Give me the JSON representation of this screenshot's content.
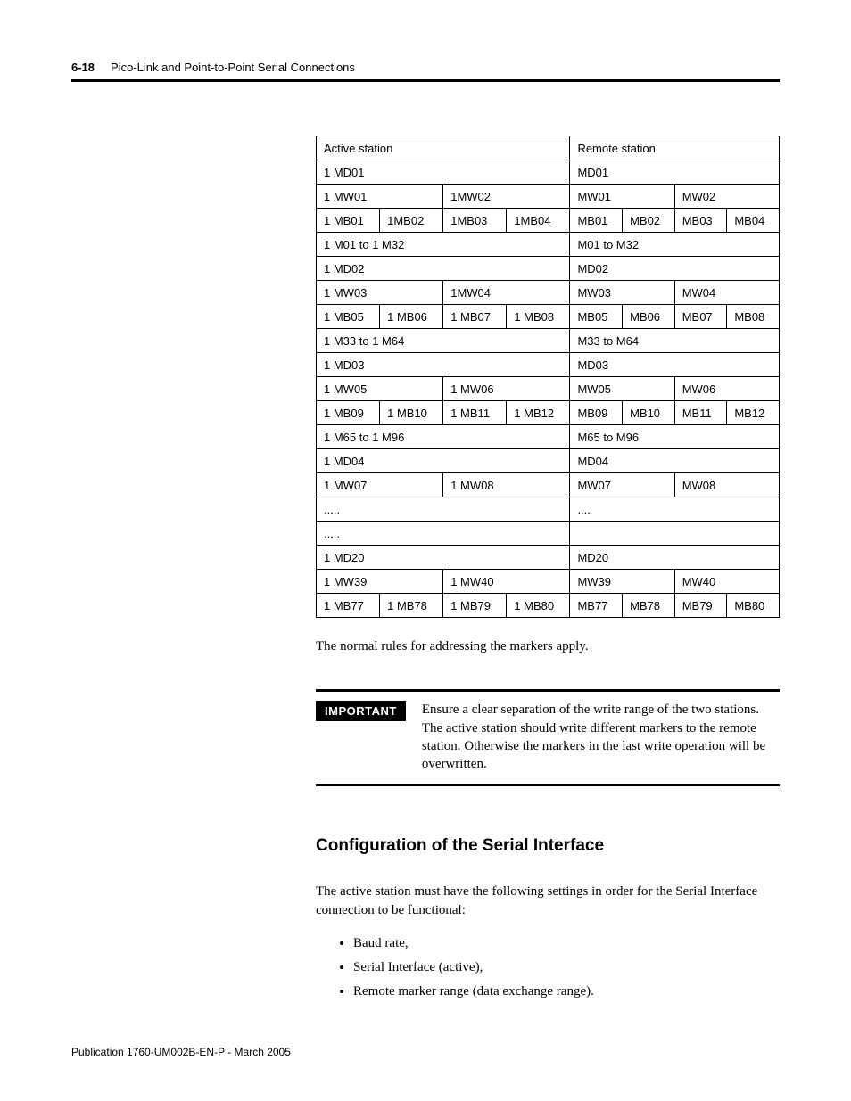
{
  "header": {
    "page_no": "6-18",
    "title": "Pico-Link and Point-to-Point Serial Connections"
  },
  "table": {
    "columns": 8,
    "border_color": "#000000",
    "text_color": "#000000",
    "font_size": 13,
    "rows": [
      [
        {
          "t": "Active station",
          "span": 4
        },
        {
          "t": "Remote station",
          "span": 4
        }
      ],
      [
        {
          "t": "1 MD01",
          "span": 4
        },
        {
          "t": "MD01",
          "span": 4
        }
      ],
      [
        {
          "t": "1 MW01",
          "span": 2
        },
        {
          "t": "1MW02",
          "span": 2
        },
        {
          "t": "MW01",
          "span": 2
        },
        {
          "t": "MW02",
          "span": 2
        }
      ],
      [
        {
          "t": "1 MB01",
          "span": 1
        },
        {
          "t": "1MB02",
          "span": 1
        },
        {
          "t": "1MB03",
          "span": 1
        },
        {
          "t": "1MB04",
          "span": 1
        },
        {
          "t": "MB01",
          "span": 1
        },
        {
          "t": "MB02",
          "span": 1
        },
        {
          "t": "MB03",
          "span": 1
        },
        {
          "t": "MB04",
          "span": 1
        }
      ],
      [
        {
          "t": "1 M01 to 1 M32",
          "span": 4
        },
        {
          "t": "M01 to M32",
          "span": 4
        }
      ],
      [
        {
          "t": "1 MD02",
          "span": 4
        },
        {
          "t": "MD02",
          "span": 4
        }
      ],
      [
        {
          "t": "1 MW03",
          "span": 2
        },
        {
          "t": "1MW04",
          "span": 2
        },
        {
          "t": "MW03",
          "span": 2
        },
        {
          "t": "MW04",
          "span": 2
        }
      ],
      [
        {
          "t": "1 MB05",
          "span": 1
        },
        {
          "t": "1 MB06",
          "span": 1
        },
        {
          "t": "1 MB07",
          "span": 1
        },
        {
          "t": "1 MB08",
          "span": 1
        },
        {
          "t": "MB05",
          "span": 1
        },
        {
          "t": "MB06",
          "span": 1
        },
        {
          "t": "MB07",
          "span": 1
        },
        {
          "t": "MB08",
          "span": 1
        }
      ],
      [
        {
          "t": "1 M33 to 1 M64",
          "span": 4
        },
        {
          "t": "M33 to M64",
          "span": 4
        }
      ],
      [
        {
          "t": "1 MD03",
          "span": 4
        },
        {
          "t": "MD03",
          "span": 4
        }
      ],
      [
        {
          "t": "1 MW05",
          "span": 2
        },
        {
          "t": "1 MW06",
          "span": 2
        },
        {
          "t": "MW05",
          "span": 2
        },
        {
          "t": "MW06",
          "span": 2
        }
      ],
      [
        {
          "t": "1 MB09",
          "span": 1
        },
        {
          "t": "1 MB10",
          "span": 1
        },
        {
          "t": "1 MB11",
          "span": 1
        },
        {
          "t": "1 MB12",
          "span": 1
        },
        {
          "t": "MB09",
          "span": 1
        },
        {
          "t": "MB10",
          "span": 1
        },
        {
          "t": "MB11",
          "span": 1
        },
        {
          "t": "MB12",
          "span": 1
        }
      ],
      [
        {
          "t": "1 M65 to 1 M96",
          "span": 4
        },
        {
          "t": "M65 to M96",
          "span": 4
        }
      ],
      [
        {
          "t": "1 MD04",
          "span": 4
        },
        {
          "t": "MD04",
          "span": 4
        }
      ],
      [
        {
          "t": "1 MW07",
          "span": 2
        },
        {
          "t": "1 MW08",
          "span": 2
        },
        {
          "t": "MW07",
          "span": 2
        },
        {
          "t": "MW08",
          "span": 2
        }
      ],
      [
        {
          "t": ".....",
          "span": 4
        },
        {
          "t": "....",
          "span": 4
        }
      ],
      [
        {
          "t": ".....",
          "span": 4
        },
        {
          "t": "",
          "span": 4
        }
      ],
      [
        {
          "t": "1 MD20",
          "span": 4
        },
        {
          "t": "MD20",
          "span": 4
        }
      ],
      [
        {
          "t": "1 MW39",
          "span": 2
        },
        {
          "t": "1 MW40",
          "span": 2
        },
        {
          "t": "MW39",
          "span": 2
        },
        {
          "t": "MW40",
          "span": 2
        }
      ],
      [
        {
          "t": "1 MB77",
          "span": 1
        },
        {
          "t": "1 MB78",
          "span": 1
        },
        {
          "t": "1 MB79",
          "span": 1
        },
        {
          "t": "1 MB80",
          "span": 1
        },
        {
          "t": "MB77",
          "span": 1
        },
        {
          "t": "MB78",
          "span": 1
        },
        {
          "t": "MB79",
          "span": 1
        },
        {
          "t": "MB80",
          "span": 1
        }
      ]
    ]
  },
  "body": {
    "rules_note": "The normal rules for addressing the markers apply.",
    "important_label": "IMPORTANT",
    "important_text": "Ensure a clear separation of the write range of the two stations. The active station should write different markers to the remote station. Otherwise the markers in the last write operation will be overwritten.",
    "section_heading": "Configuration of the Serial Interface",
    "section_intro": "The active station must have the following settings in order for the Serial Interface connection to be functional:",
    "settings": [
      "Baud rate,",
      "Serial Interface (active),",
      "Remote marker range (data exchange range)."
    ]
  },
  "footer": "Publication 1760-UM002B-EN-P - March 2005"
}
